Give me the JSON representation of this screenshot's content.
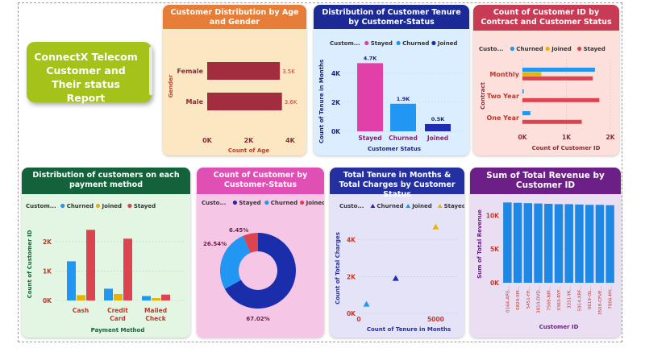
{
  "report_title": "ConnectX Telecom Customer and Their status Report",
  "colors": {
    "stayed": "#e040a8",
    "churned": "#2196f3",
    "joined": "#e8b400",
    "joined_alt": "#1f2bb3",
    "stayed_red": "#dc4450",
    "bar_red": "#a22d3e",
    "bar_blue": "#1e88e5",
    "donut_blue": "#1a2eac"
  },
  "chart_data": [
    {
      "id": "age_gender",
      "type": "bar",
      "orientation": "horizontal",
      "title": "Customer Distribution by Age and Gender",
      "categories": [
        "Female",
        "Male"
      ],
      "values": [
        3500,
        3600
      ],
      "data_labels": [
        "3.5K",
        "3.6K"
      ],
      "xlabel": "Count of Age",
      "ylabel": "Gender",
      "xlim": [
        0,
        4000
      ],
      "xticks": [
        "0K",
        "2K",
        "4K"
      ]
    },
    {
      "id": "tenure_status",
      "type": "bar",
      "title": "Distribution of Customer Tenure by Customer-Status",
      "legend_title": "Custom...",
      "legend": [
        "Stayed",
        "Churned",
        "Joined"
      ],
      "categories": [
        "Stayed",
        "Churned",
        "Joined"
      ],
      "values": [
        4.7,
        1.9,
        0.5
      ],
      "data_labels": [
        "4.7K",
        "1.9K",
        "0.5K"
      ],
      "xlabel": "Customer Status",
      "ylabel": "Count of Tenure in Months",
      "ylim": [
        0,
        5
      ],
      "yticks": [
        "0K",
        "2K",
        "4K"
      ]
    },
    {
      "id": "contract_status",
      "type": "bar",
      "orientation": "horizontal",
      "title": "Count of Customer ID by Contract and Customer Status",
      "legend_title": "Custo...",
      "legend": [
        "Churned",
        "Joined",
        "Stayed"
      ],
      "categories": [
        "Monthly",
        "Two Year",
        "One Year"
      ],
      "series": [
        {
          "name": "Churned",
          "values": [
            1.65,
            0.03,
            0.18
          ]
        },
        {
          "name": "Joined",
          "values": [
            0.43,
            0,
            0
          ]
        },
        {
          "name": "Stayed",
          "values": [
            1.6,
            1.75,
            1.35
          ]
        }
      ],
      "xlabel": "Count of Customer ID",
      "ylabel": "Contract",
      "xlim": [
        0,
        2
      ],
      "xticks": [
        "0K",
        "1K",
        "2K"
      ]
    },
    {
      "id": "payment_method",
      "type": "bar",
      "title": "Distribution of customers on each payment method",
      "legend_title": "Custom...",
      "legend": [
        "Churned",
        "Joined",
        "Stayed"
      ],
      "categories": [
        "Cash",
        "Credit Card",
        "Mailed Check"
      ],
      "series": [
        {
          "name": "Churned",
          "values": [
            1.33,
            0.4,
            0.15
          ]
        },
        {
          "name": "Joined",
          "values": [
            0.18,
            0.22,
            0.08
          ]
        },
        {
          "name": "Stayed",
          "values": [
            2.4,
            2.1,
            0.2
          ]
        }
      ],
      "xlabel": "Payment Method",
      "ylabel": "Count of Customer ID",
      "ylim": [
        0,
        2.6
      ],
      "yticks": [
        "0K",
        "1K",
        "2K"
      ]
    },
    {
      "id": "customer_status_pie",
      "type": "pie",
      "donut": true,
      "title": "Count of Customer by Customer-Status",
      "legend_title": "Custo...",
      "legend": [
        "Stayed",
        "Churned",
        "Joined"
      ],
      "categories": [
        "Stayed",
        "Churned",
        "Joined"
      ],
      "values": [
        67.02,
        26.54,
        6.45
      ],
      "data_labels": [
        "67.02%",
        "26.54%",
        "6.45%"
      ]
    },
    {
      "id": "tenure_charges",
      "type": "scatter",
      "title": "Total Tenure in Months & Total Charges by Customer Status",
      "legend_title": "Custo...",
      "legend": [
        "Churned",
        "Joined",
        "Stayed"
      ],
      "points": [
        {
          "name": "Churned",
          "x": 2400,
          "y": 1.9
        },
        {
          "name": "Joined",
          "x": 500,
          "y": 0.5
        },
        {
          "name": "Stayed",
          "x": 5000,
          "y": 4.7
        }
      ],
      "xlabel": "Count of Tenure in Months",
      "ylabel": "Count of Total Charges",
      "xlim": [
        0,
        6500
      ],
      "ylim": [
        0,
        5.3
      ],
      "xticks": [
        "0",
        "5000"
      ],
      "yticks": [
        "0K",
        "2K",
        "4K"
      ]
    },
    {
      "id": "revenue_by_customer",
      "type": "bar",
      "title": "Sum of Total Revenue by Customer ID",
      "categories": [
        "0164-APG...",
        "0829-XM...",
        "5451-YH...",
        "3810-DVD...",
        "7569-NM...",
        "3363-RYF...",
        "3351-YK...",
        "5914-XRF...",
        "0619-OL...",
        "3508-CFVE...",
        "7806-MY..."
      ],
      "values": [
        11.9,
        11.85,
        11.8,
        11.75,
        11.7,
        11.65,
        11.65,
        11.6,
        11.55,
        11.55,
        11.5
      ],
      "xlabel": "Customer ID",
      "ylabel": "Sum of Total Revenue",
      "ylim": [
        0,
        12.3
      ],
      "yticks": [
        "0K",
        "5K",
        "10K"
      ]
    }
  ]
}
